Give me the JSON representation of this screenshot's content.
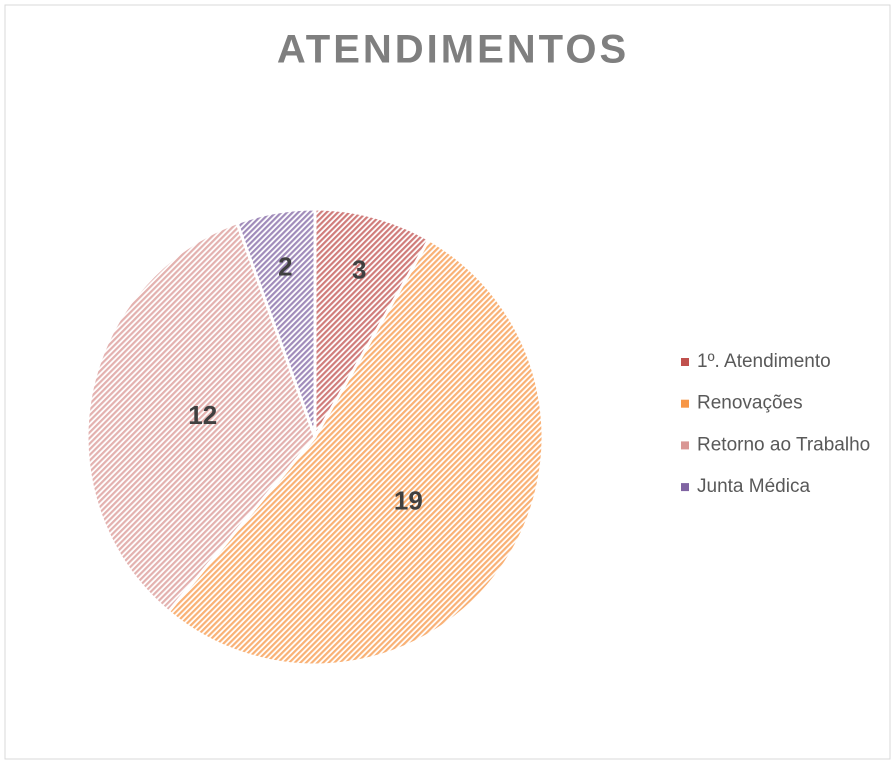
{
  "chart_data": {
    "type": "pie",
    "title": "ATENDIMENTOS",
    "categories": [
      "1º. Atendimento",
      "Renovações",
      "Retorno ao Trabalho",
      "Junta Médica"
    ],
    "values": [
      3,
      19,
      12,
      2
    ],
    "colors": [
      "#c0504d",
      "#f79646",
      "#d99694",
      "#8064a2"
    ],
    "legend": "right"
  }
}
